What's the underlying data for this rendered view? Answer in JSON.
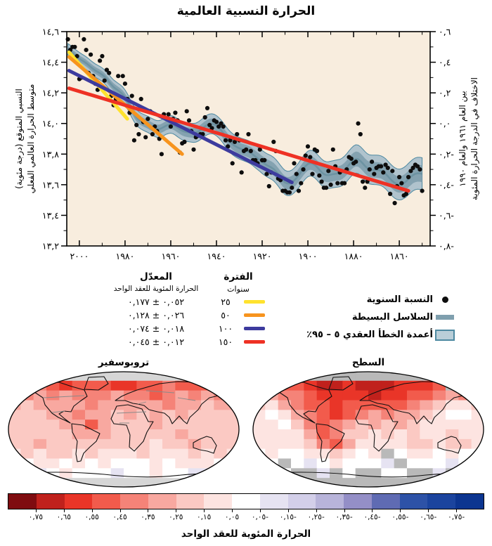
{
  "title": "الحرارة النسبية العالمية",
  "chart_data": {
    "type": "line",
    "title": "الحرارة النسبية العالمية",
    "plot_bg": "#f8edde",
    "x_axis": {
      "direction": "reversed_rtl",
      "range": [
        2005.5,
        1846.5
      ],
      "tick_years": [
        2000,
        1980,
        1960,
        1940,
        1920,
        1900,
        1880,
        1860
      ],
      "tick_labels": [
        "٢٠٠٠",
        "١٩٨٠",
        "١٩٦٠",
        "١٩٤٠",
        "١٩٢٠",
        "١٩٠٠",
        "١٨٨٠",
        "١٨٦٠"
      ],
      "minor_tick_years": [
        1990,
        1970,
        1950,
        1930,
        1910,
        1890,
        1870,
        1850
      ]
    },
    "y_axis_left": {
      "label_lines": [
        "متوسط الحرارة العالمي الفعلي",
        "النسبي المتوقع (درجة مئوية)"
      ],
      "range": [
        14.6,
        13.2
      ],
      "tick_values": [
        14.6,
        14.4,
        14.2,
        14.0,
        13.8,
        13.6,
        13.4,
        13.2
      ],
      "tick_labels": [
        "١٤,٦",
        "١٤,٤",
        "١٤,٢",
        "١٤,٠",
        "١٣,٨",
        "١٣,٦",
        "١٣,٤",
        "١٣,٢"
      ]
    },
    "y_axis_right": {
      "label_lines": [
        "الاختلاف في الدرجة الحرارة المئوية",
        "بين العام ١٩٦١ والعام ١٩٩٠"
      ],
      "range": [
        0.6,
        -0.8
      ],
      "tick_values": [
        0.6,
        0.4,
        0.2,
        0.0,
        -0.2,
        -0.4,
        -0.6,
        -0.8
      ],
      "tick_labels": [
        "٠,٦",
        "٠,٤",
        "٠,٢",
        "٠,٠",
        "٠,٢-",
        "٠,٤-",
        "٠,٦-",
        "٠,٨-"
      ]
    },
    "annual_series": {
      "label": "النسبة السنوية",
      "color": "#0d0d0d",
      "start_year": 1850,
      "anomalies_c": [
        -0.44,
        -0.3,
        -0.28,
        -0.27,
        -0.29,
        -0.31,
        -0.35,
        -0.46,
        -0.47,
        -0.39,
        -0.35,
        -0.41,
        -0.52,
        -0.31,
        -0.46,
        -0.29,
        -0.27,
        -0.32,
        -0.28,
        -0.28,
        -0.29,
        -0.33,
        -0.25,
        -0.3,
        -0.38,
        -0.42,
        -0.38,
        -0.07,
        0.0,
        -0.25,
        -0.26,
        -0.23,
        -0.22,
        -0.3,
        -0.39,
        -0.39,
        -0.32,
        -0.39,
        -0.28,
        -0.17,
        -0.4,
        -0.31,
        -0.42,
        -0.42,
        -0.38,
        -0.34,
        -0.18,
        -0.17,
        -0.33,
        -0.22,
        -0.15,
        -0.21,
        -0.3,
        -0.39,
        -0.44,
        -0.33,
        -0.26,
        -0.42,
        -0.45,
        -0.45,
        -0.44,
        -0.44,
        -0.37,
        -0.36,
        -0.18,
        -0.12,
        -0.32,
        -0.41,
        -0.33,
        -0.24,
        -0.24,
        -0.17,
        -0.26,
        -0.24,
        -0.24,
        -0.18,
        -0.07,
        -0.17,
        -0.18,
        -0.32,
        -0.11,
        -0.07,
        -0.12,
        -0.26,
        -0.11,
        -0.15,
        -0.11,
        -0.02,
        0.0,
        -0.02,
        0.01,
        0.02,
        -0.03,
        -0.01,
        0.1,
        0.04,
        -0.07,
        -0.07,
        -0.08,
        -0.09,
        -0.17,
        -0.05,
        0.02,
        0.08,
        -0.12,
        -0.13,
        -0.19,
        0.02,
        0.07,
        0.03,
        -0.02,
        0.06,
        0.03,
        0.06,
        -0.2,
        -0.1,
        -0.05,
        -0.02,
        -0.07,
        0.08,
        0.03,
        -0.09,
        0.01,
        0.16,
        -0.07,
        -0.01,
        -0.11,
        0.18,
        0.07,
        0.16,
        0.26,
        0.31,
        0.14,
        0.31,
        0.16,
        0.12,
        0.18,
        0.33,
        0.35,
        0.28,
        0.44,
        0.41,
        0.22,
        0.26,
        0.31,
        0.45,
        0.33,
        0.48,
        0.55,
        0.3,
        0.29,
        0.44,
        0.5,
        0.5,
        0.48,
        0.55
      ]
    },
    "smoothed_series": {
      "label": "السلاسل البسيطة",
      "line_color": "#6d93a2",
      "band_inner_color": "#84a2b0",
      "band_outer_color": "#b0c3cd",
      "band_edge_color": "#4d89a1"
    },
    "error_band": {
      "label": "أعمدة الخطأ العقدي ٥ – ٩٥٪",
      "outer_halfwidth_c": {
        "y1850": 0.105,
        "y2005": 0.038
      },
      "inner_halfwidth_c": {
        "y1850": 0.055,
        "y2005": 0.02
      }
    },
    "trends": [
      {
        "period_label": "٢٥",
        "period_years": 25,
        "rate_c_per_decade": 0.177,
        "rate_uncertainty": 0.052,
        "rate_label": "٠,٠٥٢ ± ٠,١٧٧",
        "color": "#ffe22e",
        "from": [
          2004.5,
          0.465
        ],
        "to": [
          1979,
          0.03
        ]
      },
      {
        "period_label": "٥٠",
        "period_years": 50,
        "rate_c_per_decade": 0.128,
        "rate_uncertainty": 0.026,
        "rate_label": "٠,٠٢٦ ± ٠,١٢٨",
        "color": "#f7941e",
        "from": [
          2004.5,
          0.435
        ],
        "to": [
          1955,
          -0.2
        ]
      },
      {
        "period_label": "١٠٠",
        "period_years": 100,
        "rate_c_per_decade": 0.074,
        "rate_uncertainty": 0.018,
        "rate_label": "٠,٠١٨ ± ٠,٠٧٤",
        "color": "#3d3b9e",
        "from": [
          2004.5,
          0.345
        ],
        "to": [
          1907,
          -0.385
        ]
      },
      {
        "period_label": "١٥٠",
        "period_years": 150,
        "rate_c_per_decade": 0.045,
        "rate_uncertainty": 0.012,
        "rate_label": "٠,٠١٢ ± ٠,٠٤٥",
        "color": "#ee3124",
        "from": [
          2004.5,
          0.23
        ],
        "to": [
          1856,
          -0.44
        ]
      }
    ],
    "maps": [
      {
        "title": "تروبوسفير",
        "unit": "°C per decade",
        "no_data_color": "#d6d6d6",
        "lat_band_deg": 15,
        "lon_band_deg": 20,
        "trend_grid": [
          [
            null,
            null,
            null,
            null,
            null,
            null,
            null,
            null,
            null,
            null,
            null,
            null,
            null,
            null,
            null,
            null,
            null,
            null
          ],
          [
            0.45,
            0.5,
            0.4,
            0.45,
            0.55,
            0.5,
            0.45,
            0.5,
            0.55,
            0.6,
            0.5,
            0.45,
            0.4,
            0.45,
            0.5,
            0.45,
            0.4,
            0.45
          ],
          [
            0.3,
            0.35,
            0.3,
            0.35,
            0.3,
            0.35,
            0.4,
            0.35,
            0.3,
            0.35,
            0.4,
            0.45,
            0.35,
            0.3,
            0.35,
            0.3,
            0.35,
            0.3
          ],
          [
            0.25,
            0.2,
            0.25,
            0.3,
            0.25,
            0.3,
            0.35,
            0.3,
            0.25,
            0.3,
            0.25,
            0.3,
            0.35,
            0.3,
            0.25,
            0.2,
            0.25,
            0.25
          ],
          [
            0.2,
            0.15,
            0.2,
            0.25,
            0.3,
            0.35,
            0.3,
            0.25,
            0.2,
            0.25,
            0.2,
            0.25,
            0.2,
            0.25,
            0.2,
            0.15,
            0.2,
            0.2
          ],
          [
            0.15,
            0.2,
            0.15,
            0.2,
            0.25,
            0.3,
            0.45,
            0.3,
            0.2,
            0.15,
            0.2,
            0.25,
            0.2,
            0.15,
            0.2,
            0.15,
            0.2,
            0.15
          ],
          [
            0.2,
            0.15,
            0.2,
            0.15,
            0.2,
            0.25,
            0.3,
            0.25,
            0.2,
            0.15,
            0.2,
            0.15,
            0.2,
            0.25,
            0.15,
            0.2,
            0.15,
            0.2
          ],
          [
            0.15,
            0.2,
            0.25,
            0.2,
            0.15,
            0.2,
            0.15,
            0.2,
            0.15,
            0.2,
            0.15,
            0.1,
            0.15,
            0.2,
            0.25,
            0.15,
            0.2,
            0.15
          ],
          [
            0.1,
            0.15,
            0.1,
            0.15,
            0.2,
            0.1,
            0.15,
            0.1,
            0.05,
            0.1,
            0.15,
            0.1,
            0.05,
            0.1,
            0.15,
            0.1,
            0.15,
            0.1
          ],
          [
            0.05,
            0.0,
            0.05,
            0.1,
            0.0,
            0.05,
            0.0,
            0.05,
            0.0,
            -0.05,
            0.0,
            0.05,
            0.0,
            0.05,
            0.1,
            0.05,
            0.0,
            0.05
          ],
          [
            0.0,
            -0.05,
            -0.1,
            0.0,
            0.05,
            0.0,
            -0.05,
            0.0,
            -0.1,
            -0.05,
            0.0,
            0.05,
            0.0,
            -0.05,
            -0.15,
            -0.1,
            0.0,
            0.0
          ],
          [
            null,
            null,
            null,
            null,
            null,
            null,
            null,
            null,
            null,
            null,
            null,
            null,
            null,
            null,
            null,
            null,
            null,
            null
          ]
        ]
      },
      {
        "title": "السطح",
        "unit": "°C per decade",
        "no_data_color": "#b9b9b9",
        "lat_band_deg": 15,
        "lon_band_deg": 20,
        "trend_grid": [
          [
            null,
            null,
            null,
            null,
            null,
            null,
            null,
            null,
            null,
            null,
            null,
            null,
            null,
            null,
            null,
            null,
            null,
            null
          ],
          [
            0.5,
            0.55,
            0.45,
            0.5,
            0.6,
            0.65,
            0.7,
            0.6,
            0.65,
            0.7,
            0.65,
            0.6,
            0.55,
            0.6,
            0.5,
            null,
            0.45,
            0.5
          ],
          [
            0.35,
            0.3,
            0.4,
            0.35,
            0.45,
            0.55,
            0.6,
            0.55,
            0.6,
            0.65,
            0.6,
            0.55,
            0.5,
            0.45,
            0.35,
            0.3,
            0.35,
            0.3
          ],
          [
            0.2,
            0.1,
            0.25,
            0.35,
            0.45,
            0.5,
            0.55,
            0.5,
            0.45,
            0.5,
            0.45,
            0.5,
            0.4,
            0.3,
            0.15,
            0.05,
            0.1,
            0.2
          ],
          [
            0.05,
            -0.05,
            0.1,
            0.25,
            0.4,
            0.5,
            0.55,
            0.45,
            0.35,
            0.3,
            0.35,
            0.3,
            0.25,
            0.15,
            0.05,
            0.0,
            -0.05,
            0.05
          ],
          [
            0.1,
            0.05,
            0.0,
            0.15,
            0.35,
            0.45,
            0.4,
            0.3,
            0.2,
            0.25,
            0.2,
            0.25,
            0.2,
            0.1,
            0.05,
            0.1,
            0.05,
            0.1
          ],
          [
            0.05,
            0.1,
            0.05,
            0.1,
            0.3,
            0.45,
            0.35,
            0.2,
            0.15,
            0.1,
            0.15,
            0.1,
            0.15,
            0.1,
            0.05,
            0.15,
            0.1,
            0.05
          ],
          [
            0.1,
            0.05,
            0.1,
            0.05,
            0.2,
            0.4,
            0.45,
            0.3,
            0.1,
            0.05,
            0.1,
            0.05,
            0.15,
            0.2,
            0.1,
            0.15,
            0.2,
            0.1
          ],
          [
            0.0,
            0.05,
            0.0,
            -0.05,
            0.05,
            0.1,
            0.15,
            0.1,
            0.0,
            0.05,
            null,
            0.0,
            0.05,
            0.1,
            0.0,
            0.05,
            0.0,
            0.0
          ],
          [
            -0.05,
            0.0,
            null,
            0.0,
            -0.1,
            0.0,
            0.05,
            0.0,
            -0.05,
            0.0,
            -0.1,
            null,
            0.0,
            -0.05,
            0.0,
            -0.1,
            0.0,
            -0.05
          ],
          [
            null,
            null,
            -0.05,
            null,
            null,
            -0.1,
            null,
            0.0,
            null,
            null,
            -0.05,
            0.0,
            null,
            null,
            -0.1,
            null,
            null,
            null
          ],
          [
            null,
            null,
            null,
            null,
            null,
            null,
            null,
            null,
            null,
            null,
            null,
            null,
            null,
            null,
            null,
            null,
            null,
            null
          ]
        ]
      }
    ],
    "colorbar": {
      "caption": "الحرارة المئوية للعقد الواحد",
      "unit": "°C per decade",
      "segment_colors": [
        "#7f0c10",
        "#c0211c",
        "#e93528",
        "#f25b4c",
        "#f58378",
        "#f8a8a0",
        "#fbc9c3",
        "#fde4e1",
        "#ffffff",
        "#e6e3f2",
        "#d3cfe9",
        "#b8b4da",
        "#948fc7",
        "#5f6bb3",
        "#2d52a7",
        "#1b449e",
        "#0c3590"
      ],
      "boundary_values": [
        0.75,
        0.65,
        0.55,
        0.45,
        0.35,
        0.25,
        0.15,
        0.05,
        -0.05,
        -0.15,
        -0.25,
        -0.35,
        -0.45,
        -0.55,
        -0.65,
        -0.75
      ],
      "boundary_labels": [
        "٠,٧٥",
        "٠,٦٥",
        "٠,٥٥",
        "٠,٤٥",
        "٠,٣٥",
        "٠,٢٥",
        "٠,١٥",
        "٠,٠٥",
        "٠,٠٥-",
        "٠,١٥-",
        "٠,٢٥-",
        "٠,٣٥-",
        "٠,٤٥-",
        "٠,٥٥-",
        "٠,٦٥-",
        "٠,٧٥-"
      ]
    }
  },
  "legend_table": {
    "header_rate": "المعدّل",
    "header_period": "الفترة",
    "sub_rate": "الحرارة المئوية للعقد الواحد",
    "sub_period": "سنوات"
  },
  "series_legend": {
    "items": [
      {
        "label": "النسبة السنوية",
        "symbol": "dot"
      },
      {
        "label": "السلاسل البسيطة",
        "symbol": "bar"
      },
      {
        "label": "أعمدة الخطأ العقدي ٥ – ٩٥٪",
        "symbol": "box"
      }
    ]
  }
}
